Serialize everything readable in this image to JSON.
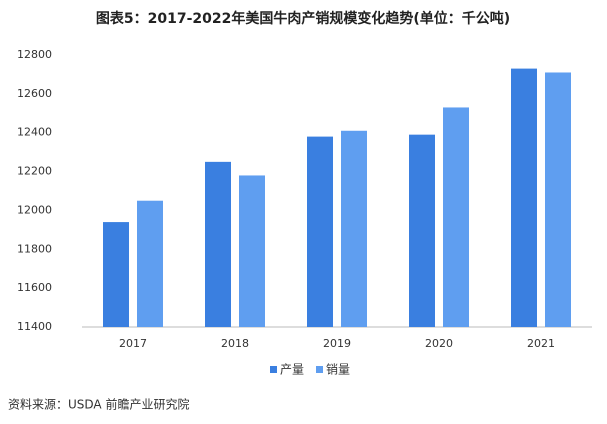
{
  "chart_data": {
    "type": "bar",
    "title": "图表5：2017-2022年美国牛肉产销规模变化趋势(单位：千公吨)",
    "categories": [
      "2017",
      "2018",
      "2019",
      "2020",
      "2021"
    ],
    "series": [
      {
        "name": "产量",
        "color": "#3a7fe0",
        "values": [
          11940,
          12250,
          12380,
          12390,
          12730
        ]
      },
      {
        "name": "销量",
        "color": "#5f9ef0",
        "values": [
          12050,
          12180,
          12410,
          12530,
          12710
        ]
      }
    ],
    "ylim": [
      11400,
      12800
    ],
    "yticks": [
      11400,
      11600,
      11800,
      12000,
      12200,
      12400,
      12600,
      12800
    ],
    "grid": false,
    "legend": "bottom",
    "source": "资料来源：USDA 前瞻产业研究院"
  }
}
